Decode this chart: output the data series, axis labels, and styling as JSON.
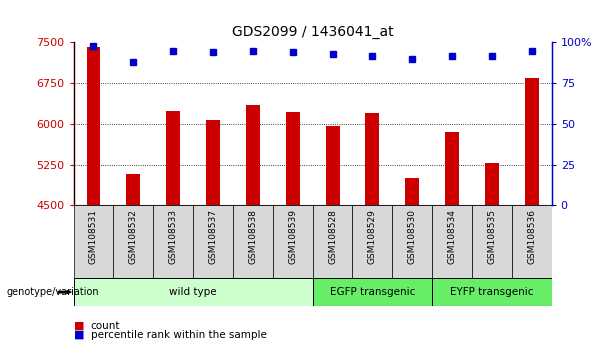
{
  "title": "GDS2099 / 1436041_at",
  "samples": [
    "GSM108531",
    "GSM108532",
    "GSM108533",
    "GSM108537",
    "GSM108538",
    "GSM108539",
    "GSM108528",
    "GSM108529",
    "GSM108530",
    "GSM108534",
    "GSM108535",
    "GSM108536"
  ],
  "counts": [
    7420,
    5070,
    6230,
    6080,
    6350,
    6220,
    5960,
    6200,
    5000,
    5850,
    5280,
    6850
  ],
  "percentiles": [
    98,
    88,
    95,
    94,
    95,
    94,
    93,
    92,
    90,
    92,
    92,
    95
  ],
  "groups": [
    {
      "label": "wild type",
      "start": 0,
      "end": 6,
      "light_color": "#e8ffe8",
      "dark_color": "#88dd88"
    },
    {
      "label": "EGFP transgenic",
      "start": 6,
      "end": 9,
      "light_color": "#88ee88",
      "dark_color": "#44cc44"
    },
    {
      "label": "EYFP transgenic",
      "start": 9,
      "end": 12,
      "light_color": "#88ee88",
      "dark_color": "#44cc44"
    }
  ],
  "ylim_left": [
    4500,
    7500
  ],
  "ylim_right": [
    0,
    100
  ],
  "yticks_left": [
    4500,
    5250,
    6000,
    6750,
    7500
  ],
  "yticks_right": [
    0,
    25,
    50,
    75,
    100
  ],
  "bar_color": "#cc0000",
  "dot_color": "#0000cc",
  "background_color": "#ffffff",
  "plot_bg_color": "#ffffff",
  "sample_box_color": "#d8d8d8",
  "bar_width": 0.35
}
